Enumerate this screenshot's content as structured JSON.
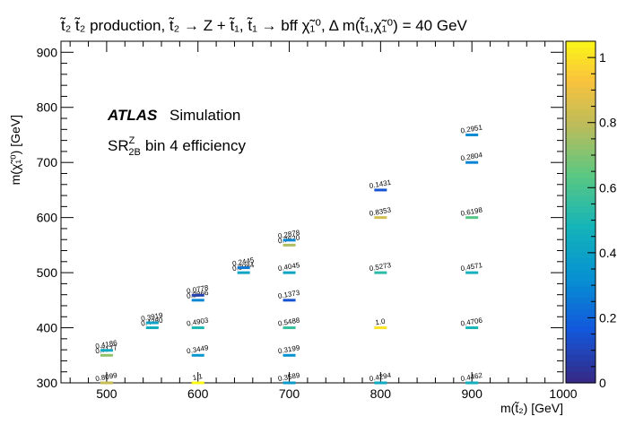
{
  "chart_data": {
    "type": "heatmap",
    "title": "t̃₂ t̃₂ production, t̃₂ → Z + t̃₁, t̃₁ → bff χ̃₁⁰, Δ m(t̃₁,χ̃₁⁰) = 40 GeV",
    "xlabel": "m(t̃₂) [GeV]",
    "ylabel": "m(χ̃₁⁰) [GeV]",
    "xlim": [
      450,
      1000
    ],
    "ylim": [
      300,
      920
    ],
    "x_ticks": [
      "500",
      "600",
      "700",
      "800",
      "900",
      "1000"
    ],
    "y_ticks": [
      "300",
      "400",
      "500",
      "600",
      "700",
      "800",
      "900"
    ],
    "colorbar": {
      "min": 0,
      "max": 1.05,
      "ticks": [
        "0",
        "0.2",
        "0.4",
        "0.6",
        "0.8",
        "1"
      ]
    },
    "annotations": {
      "experiment": "ATLAS",
      "label": "Simulation",
      "region_main": "SR",
      "region_sup": "Z",
      "region_sub": "2B",
      "region_rest": "bin 4 efficiency"
    },
    "points": [
      {
        "x": 500,
        "y": 300,
        "label": "0.8099",
        "value": 0.8099
      },
      {
        "x": 500,
        "y": 350,
        "label": "0.7177",
        "value": 0.7177
      },
      {
        "x": 500,
        "y": 359,
        "label": "0.4186",
        "value": 0.4186
      },
      {
        "x": 550,
        "y": 400,
        "label": "0.4380",
        "value": 0.438
      },
      {
        "x": 550,
        "y": 409,
        "label": "0.3919",
        "value": 0.3919
      },
      {
        "x": 600,
        "y": 300,
        "label": "1.1",
        "value": 1.05
      },
      {
        "x": 600,
        "y": 350,
        "label": "0.3449",
        "value": 0.3449
      },
      {
        "x": 600,
        "y": 400,
        "label": "0.4903",
        "value": 0.4903
      },
      {
        "x": 600,
        "y": 450,
        "label": "0.2866",
        "value": 0.2866
      },
      {
        "x": 600,
        "y": 459,
        "label": "0.0778",
        "value": 0.0778
      },
      {
        "x": 650,
        "y": 500,
        "label": "0.3984",
        "value": 0.3984
      },
      {
        "x": 650,
        "y": 509,
        "label": "0.2445",
        "value": 0.2445
      },
      {
        "x": 700,
        "y": 300,
        "label": "0.3589",
        "value": 0.3589
      },
      {
        "x": 700,
        "y": 350,
        "label": "0.3199",
        "value": 0.3199
      },
      {
        "x": 700,
        "y": 400,
        "label": "0.5488",
        "value": 0.5488
      },
      {
        "x": 700,
        "y": 450,
        "label": "0.1373",
        "value": 0.1373
      },
      {
        "x": 700,
        "y": 500,
        "label": "0.4045",
        "value": 0.4045
      },
      {
        "x": 700,
        "y": 550,
        "label": "0.7620",
        "value": 0.762
      },
      {
        "x": 700,
        "y": 559,
        "label": "0.2878",
        "value": 0.2878
      },
      {
        "x": 800,
        "y": 300,
        "label": "0.4294",
        "value": 0.4294
      },
      {
        "x": 800,
        "y": 400,
        "label": "1.0",
        "value": 1.0
      },
      {
        "x": 800,
        "y": 500,
        "label": "0.5273",
        "value": 0.5273
      },
      {
        "x": 800,
        "y": 600,
        "label": "0.8353",
        "value": 0.8353
      },
      {
        "x": 800,
        "y": 650,
        "label": "0.1431",
        "value": 0.1431
      },
      {
        "x": 900,
        "y": 300,
        "label": "0.4462",
        "value": 0.4462
      },
      {
        "x": 900,
        "y": 400,
        "label": "0.4706",
        "value": 0.4706
      },
      {
        "x": 900,
        "y": 500,
        "label": "0.4571",
        "value": 0.4571
      },
      {
        "x": 900,
        "y": 600,
        "label": "0.6198",
        "value": 0.6198
      },
      {
        "x": 900,
        "y": 700,
        "label": "0.2804",
        "value": 0.2804
      },
      {
        "x": 900,
        "y": 750,
        "label": "0.2951",
        "value": 0.2951
      }
    ]
  }
}
